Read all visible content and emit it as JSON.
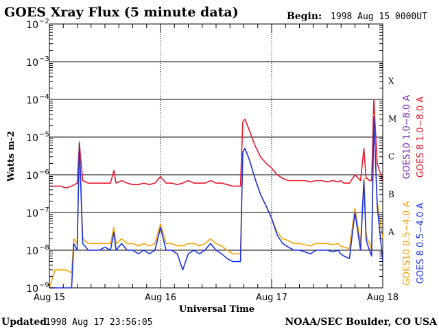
{
  "chart_data": {
    "type": "line",
    "title": "GOES Xray Flux (5 minute data)",
    "begin_label": "Begin:",
    "begin_value": "1998 Aug 15 0000UT",
    "xlabel": "Universal Time",
    "ylabel": "Watts m-2",
    "y_scale": "log",
    "ylim": [
      1e-09,
      0.01
    ],
    "y_ticks": [
      {
        "base": "10",
        "exp": "−2",
        "value": 0.01
      },
      {
        "base": "10",
        "exp": "−3",
        "value": 0.001
      },
      {
        "base": "10",
        "exp": "−4",
        "value": 0.0001
      },
      {
        "base": "10",
        "exp": "−5",
        "value": 1e-05
      },
      {
        "base": "10",
        "exp": "−6",
        "value": 1e-06
      },
      {
        "base": "10",
        "exp": "−7",
        "value": 1e-07
      },
      {
        "base": "10",
        "exp": "−8",
        "value": 1e-08
      },
      {
        "base": "10",
        "exp": "−9",
        "value": 1e-09
      }
    ],
    "x_range_days": [
      15,
      18
    ],
    "x_ticks": [
      {
        "label": "Aug 15",
        "value": 15
      },
      {
        "label": "Aug 16",
        "value": 16
      },
      {
        "label": "Aug 17",
        "value": 17
      },
      {
        "label": "Aug 18",
        "value": 18
      }
    ],
    "flare_classes": [
      {
        "label": "X",
        "value": 0.0001
      },
      {
        "label": "M",
        "value": 1e-05
      },
      {
        "label": "C",
        "value": 1e-06
      },
      {
        "label": "B",
        "value": 1e-07
      },
      {
        "label": "A",
        "value": 1e-08
      }
    ],
    "grid": true,
    "legend_placement": "right, vertical",
    "series": [
      {
        "name": "GOES10 1.0−8.0 A",
        "color": "#7a1fb0",
        "x": [],
        "y": []
      },
      {
        "name": "GOES 8 1.0−8.0 A",
        "color": "#e8192c",
        "x": [
          15.0,
          15.05,
          15.1,
          15.15,
          15.2,
          15.25,
          15.27,
          15.3,
          15.35,
          15.4,
          15.45,
          15.5,
          15.55,
          15.58,
          15.6,
          15.65,
          15.7,
          15.75,
          15.8,
          15.85,
          15.9,
          15.95,
          16.0,
          16.05,
          16.1,
          16.15,
          16.2,
          16.25,
          16.3,
          16.35,
          16.4,
          16.45,
          16.5,
          16.55,
          16.6,
          16.65,
          16.72,
          16.74,
          16.76,
          16.8,
          16.85,
          16.9,
          16.95,
          17.0,
          17.05,
          17.1,
          17.15,
          17.2,
          17.25,
          17.3,
          17.35,
          17.4,
          17.45,
          17.5,
          17.55,
          17.6,
          17.62,
          17.65,
          17.7,
          17.75,
          17.8,
          17.83,
          17.85,
          17.86,
          17.88,
          17.9,
          17.92,
          17.95,
          18.0
        ],
        "y": [
          5e-07,
          5e-07,
          5e-07,
          4.5e-07,
          5e-07,
          6e-07,
          7e-06,
          7e-07,
          6e-07,
          6e-07,
          6e-07,
          6e-07,
          6e-07,
          1.3e-06,
          6e-07,
          7e-07,
          6e-07,
          5.5e-07,
          5.5e-07,
          6e-07,
          5.5e-07,
          6e-07,
          9e-07,
          6e-07,
          6e-07,
          5.5e-07,
          6e-07,
          7e-07,
          6e-07,
          6e-07,
          6e-07,
          7e-07,
          6e-07,
          6e-07,
          5.5e-07,
          5e-07,
          5e-07,
          2.5e-05,
          3e-05,
          1.5e-05,
          6e-06,
          3e-06,
          2e-06,
          1.5e-06,
          1e-06,
          8e-07,
          7e-07,
          7e-07,
          7e-07,
          7e-07,
          6.5e-07,
          7e-07,
          7e-07,
          6.5e-07,
          7e-07,
          6.5e-07,
          7e-07,
          6e-07,
          6e-07,
          1e-06,
          7e-07,
          5e-06,
          8e-07,
          8e-07,
          7e-07,
          7e-07,
          0.0001,
          2e-06,
          7e-07
        ]
      },
      {
        "name": "GOES10 0.5−4.0 A",
        "color": "#f5a300",
        "x": [
          15.0,
          15.05,
          15.1,
          15.15,
          15.2,
          15.22,
          15.25,
          15.27,
          15.3,
          15.35,
          15.4,
          15.45,
          15.5,
          15.55,
          15.58,
          15.6,
          15.65,
          15.7,
          15.75,
          15.8,
          15.85,
          15.9,
          15.95,
          16.0,
          16.05,
          16.1,
          16.15,
          16.2,
          16.25,
          16.3,
          16.35,
          16.4,
          16.45,
          16.5,
          16.55,
          16.6,
          16.65,
          16.72,
          16.74,
          16.76,
          16.8,
          16.85,
          16.9,
          16.95,
          17.0,
          17.05,
          17.1,
          17.15,
          17.2,
          17.25,
          17.3,
          17.35,
          17.4,
          17.45,
          17.5,
          17.55,
          17.6,
          17.62,
          17.65,
          17.7,
          17.75,
          17.8,
          17.83,
          17.85,
          17.86,
          17.88,
          17.9,
          17.92,
          17.95,
          18.0
        ],
        "y": [
          1e-09,
          3e-09,
          3e-09,
          3e-09,
          2.5e-09,
          2e-08,
          1.5e-08,
          8e-06,
          2e-08,
          1.5e-08,
          1.5e-08,
          1.5e-08,
          1.5e-08,
          1.5e-08,
          4e-08,
          1.5e-08,
          2e-08,
          1.5e-08,
          1.5e-08,
          1.3e-08,
          1.5e-08,
          1.3e-08,
          1.5e-08,
          5e-08,
          1.5e-08,
          1.5e-08,
          1.3e-08,
          1.3e-08,
          1.5e-08,
          1.5e-08,
          1.3e-08,
          1.5e-08,
          2e-08,
          1.5e-08,
          1.3e-08,
          1e-08,
          8e-09,
          8e-09,
          4e-06,
          5e-06,
          2.5e-06,
          8e-07,
          3e-07,
          1.5e-07,
          7e-08,
          3e-08,
          2e-08,
          1.8e-08,
          1.5e-08,
          1.5e-08,
          1.4e-08,
          1.3e-08,
          1.5e-08,
          1.5e-08,
          1.5e-08,
          1.4e-08,
          1.5e-08,
          1.3e-08,
          1.2e-08,
          1.1e-08,
          1.3e-07,
          1.5e-08,
          8e-07,
          3e-08,
          2e-08,
          1.5e-08,
          1e-08,
          4e-05,
          2e-07,
          2e-08
        ]
      },
      {
        "name": "GOES 8 0.5−4.0 A",
        "color": "#1a32e6",
        "x": [
          15.0,
          15.05,
          15.1,
          15.15,
          15.2,
          15.22,
          15.25,
          15.27,
          15.3,
          15.35,
          15.4,
          15.45,
          15.5,
          15.55,
          15.58,
          15.6,
          15.65,
          15.7,
          15.75,
          15.8,
          15.85,
          15.9,
          15.95,
          16.0,
          16.05,
          16.1,
          16.15,
          16.2,
          16.25,
          16.3,
          16.35,
          16.4,
          16.45,
          16.5,
          16.55,
          16.6,
          16.65,
          16.72,
          16.74,
          16.76,
          16.8,
          16.85,
          16.9,
          16.95,
          17.0,
          17.05,
          17.1,
          17.15,
          17.2,
          17.25,
          17.3,
          17.35,
          17.4,
          17.45,
          17.5,
          17.55,
          17.6,
          17.62,
          17.65,
          17.7,
          17.75,
          17.8,
          17.83,
          17.85,
          17.86,
          17.88,
          17.9,
          17.92,
          17.95,
          18.0
        ],
        "y": [
          1e-09,
          1e-09,
          1e-09,
          1e-09,
          1e-09,
          1.5e-08,
          1e-08,
          7e-06,
          1.5e-08,
          1e-08,
          1e-08,
          1e-08,
          1.2e-08,
          1e-08,
          3e-08,
          1e-08,
          1.5e-08,
          1e-08,
          1e-08,
          8e-09,
          1e-08,
          8e-09,
          1e-08,
          4e-08,
          1e-08,
          1e-08,
          8e-09,
          3e-09,
          8e-09,
          1e-08,
          8e-09,
          1e-08,
          1.5e-08,
          1e-08,
          8e-09,
          6e-09,
          5e-09,
          5e-09,
          4e-06,
          5e-06,
          2.5e-06,
          8e-07,
          3e-07,
          1.5e-07,
          7e-08,
          2.5e-08,
          1.5e-08,
          1.2e-08,
          1e-08,
          1e-08,
          9e-09,
          8e-09,
          1e-08,
          1e-08,
          1e-08,
          9e-09,
          1e-08,
          8e-09,
          7e-09,
          6e-09,
          1e-07,
          1e-08,
          7e-07,
          2e-08,
          1.5e-08,
          1e-08,
          7e-09,
          3.5e-05,
          1.5e-07,
          5e-09
        ]
      }
    ]
  },
  "footer": {
    "updated_label": "Updated",
    "updated_value": "1998 Aug 17 23:56:05",
    "credit": "NOAA/SEC Boulder, CO USA"
  }
}
